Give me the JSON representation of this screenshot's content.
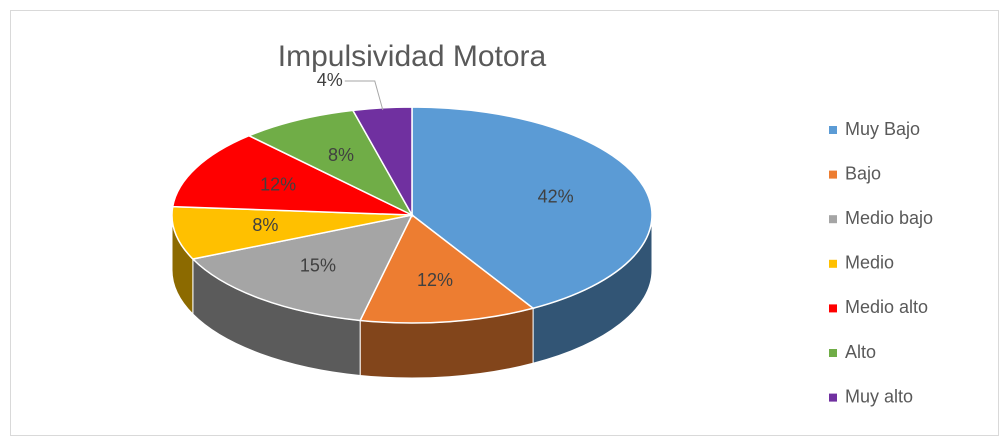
{
  "chart_data": {
    "type": "pie",
    "title": "Impulsividad  Motora",
    "categories": [
      "Muy Bajo",
      "Bajo",
      "Medio bajo",
      "Medio",
      "Medio alto",
      "Alto",
      "Muy alto"
    ],
    "values": [
      42,
      12,
      15,
      8,
      12,
      8,
      4
    ],
    "value_labels": [
      "42%",
      "12%",
      "15%",
      "8%",
      "12%",
      "8%",
      "4%"
    ],
    "colors": [
      "#5b9bd5",
      "#ed7d31",
      "#a5a5a5",
      "#ffc000",
      "#ff0000",
      "#70ad47",
      "#7030a0"
    ],
    "legend": "right"
  }
}
